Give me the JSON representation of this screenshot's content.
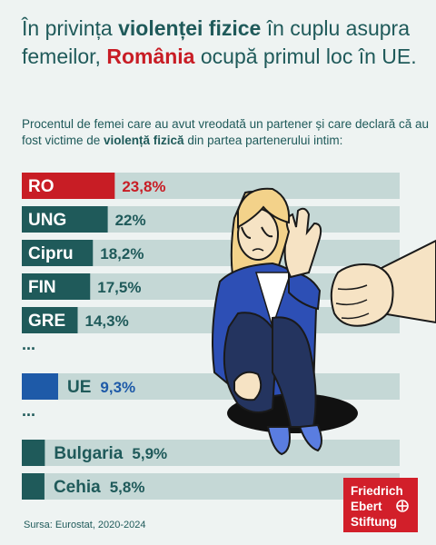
{
  "headline": {
    "part1": "În privința ",
    "bold": "violenței fizice",
    "part2": " în cuplu asupra femeilor, ",
    "red": "România",
    "part3": " ocupă primul loc în UE."
  },
  "subtitle": {
    "part1": "Procentul de femei care au avut vreodată un partener și care declară că au fost victime de ",
    "bold": "violență fizică",
    "part2": " din partea partenerului intim:"
  },
  "chart_data": {
    "type": "bar",
    "orientation": "horizontal",
    "categories": [
      "RO",
      "UNG",
      "Cipru",
      "FIN",
      "GRE",
      "UE",
      "Bulgaria",
      "Cehia"
    ],
    "values": [
      23.8,
      22,
      18.2,
      17.5,
      14.3,
      9.3,
      5.9,
      5.8
    ],
    "value_labels": [
      "23,8%",
      "22%",
      "18,2%",
      "17,5%",
      "14,3%",
      "9,3%",
      "5,9%",
      "5,8%"
    ],
    "gaps_after": [
      "GRE",
      "UE"
    ],
    "gap_marker": "...",
    "colors": {
      "highlight": "#c81d25",
      "country": "#1f5a5a",
      "eu": "#1e5aa8",
      "track": "#c5d8d6"
    }
  },
  "source": "Sursa: Eurostat, 2020-2024",
  "logo": {
    "line1": "Friedrich",
    "line2": "Ebert",
    "line3": "Stiftung"
  }
}
